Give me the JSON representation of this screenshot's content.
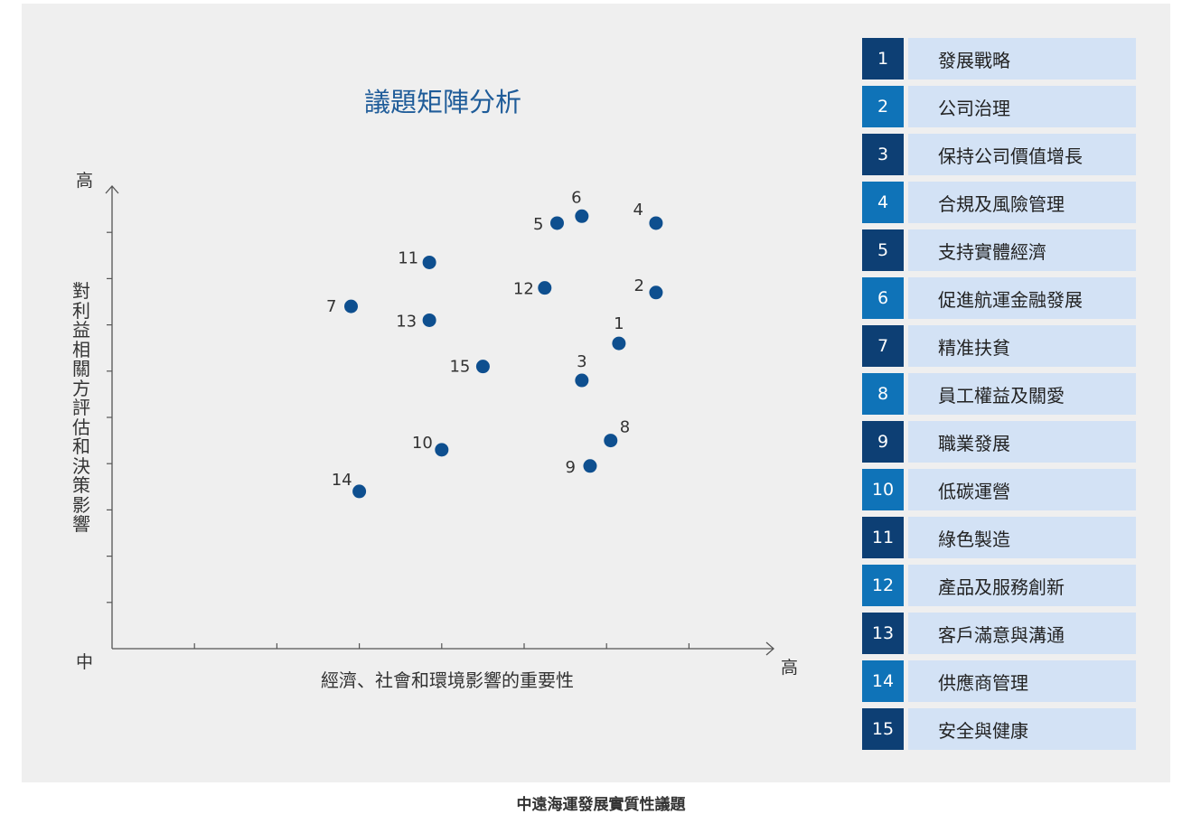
{
  "chart_data": {
    "type": "scatter",
    "title": "議題矩陣分析",
    "xlabel": "經濟、社會和環境影響的重要性",
    "ylabel": "對利益相關方評估和決策影響",
    "x_low_label": "中",
    "x_high_label": "高",
    "y_low_label": "中",
    "y_high_label": "高",
    "xlim": [
      0,
      8
    ],
    "ylim": [
      0,
      10
    ],
    "marker_color": "#0e4f8f",
    "points": [
      {
        "label": "1",
        "x": 6.15,
        "y": 6.6
      },
      {
        "label": "2",
        "x": 6.6,
        "y": 7.7
      },
      {
        "label": "3",
        "x": 5.7,
        "y": 5.8
      },
      {
        "label": "4",
        "x": 6.6,
        "y": 9.2
      },
      {
        "label": "5",
        "x": 5.4,
        "y": 9.2
      },
      {
        "label": "6",
        "x": 5.7,
        "y": 9.35
      },
      {
        "label": "7",
        "x": 2.9,
        "y": 7.4
      },
      {
        "label": "8",
        "x": 6.05,
        "y": 4.5
      },
      {
        "label": "9",
        "x": 5.8,
        "y": 3.95
      },
      {
        "label": "10",
        "x": 4.0,
        "y": 4.3
      },
      {
        "label": "11",
        "x": 3.85,
        "y": 8.35
      },
      {
        "label": "12",
        "x": 5.25,
        "y": 7.8
      },
      {
        "label": "13",
        "x": 3.85,
        "y": 7.1
      },
      {
        "label": "14",
        "x": 3.0,
        "y": 3.4
      },
      {
        "label": "15",
        "x": 4.5,
        "y": 6.1
      }
    ]
  },
  "legend": [
    {
      "num": "1",
      "label": "發展戰略",
      "color": "#0d3f74"
    },
    {
      "num": "2",
      "label": "公司治理",
      "color": "#0f73b8"
    },
    {
      "num": "3",
      "label": "保持公司價值增長",
      "color": "#0d3f74"
    },
    {
      "num": "4",
      "label": "合規及風險管理",
      "color": "#0f73b8"
    },
    {
      "num": "5",
      "label": "支持實體經濟",
      "color": "#0d3f74"
    },
    {
      "num": "6",
      "label": "促進航運金融發展",
      "color": "#0f73b8"
    },
    {
      "num": "7",
      "label": "精准扶貧",
      "color": "#0d3f74"
    },
    {
      "num": "8",
      "label": "員工權益及關愛",
      "color": "#0f73b8"
    },
    {
      "num": "9",
      "label": "職業發展",
      "color": "#0d3f74"
    },
    {
      "num": "10",
      "label": "低碳運營",
      "color": "#0f73b8"
    },
    {
      "num": "11",
      "label": "綠色製造",
      "color": "#0d3f74"
    },
    {
      "num": "12",
      "label": "產品及服務創新",
      "color": "#0f73b8"
    },
    {
      "num": "13",
      "label": "客戶滿意與溝通",
      "color": "#0d3f74"
    },
    {
      "num": "14",
      "label": "供應商管理",
      "color": "#0f73b8"
    },
    {
      "num": "15",
      "label": "安全與健康",
      "color": "#0d3f74"
    }
  ],
  "caption": "中遠海運發展實質性議題"
}
